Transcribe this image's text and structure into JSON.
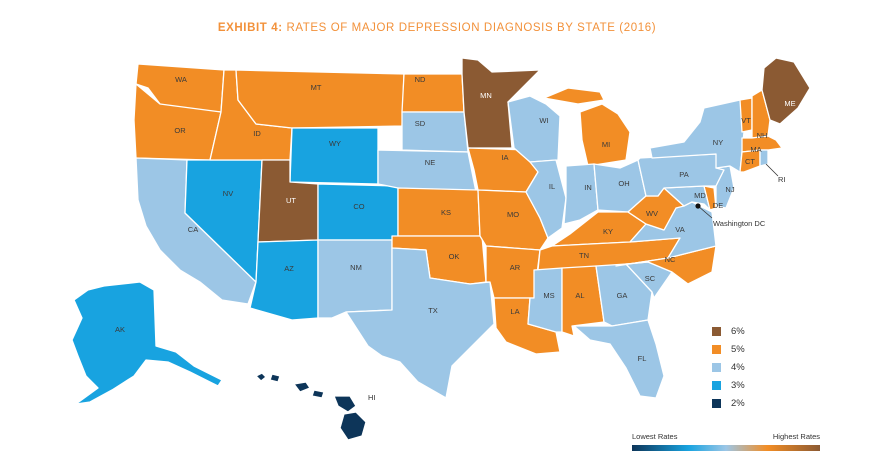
{
  "title": {
    "bold": "EXHIBIT 4:",
    "rest": "RATES OF MAJOR DEPRESSION DIAGNOSIS BY STATE (2016)"
  },
  "colors": {
    "6%": "#8b5a33",
    "5%": "#f28d25",
    "4%": "#9cc6e6",
    "3%": "#18a3e0",
    "2%": "#0d3559"
  },
  "legend": [
    {
      "label": "6%",
      "color": "#8b5a33"
    },
    {
      "label": "5%",
      "color": "#f28d25"
    },
    {
      "label": "4%",
      "color": "#9cc6e6"
    },
    {
      "label": "3%",
      "color": "#18a3e0"
    },
    {
      "label": "2%",
      "color": "#0d3559"
    }
  ],
  "scale": {
    "low": "Lowest Rates",
    "high": "Highest Rates"
  },
  "dc_label": "Washington DC",
  "states": {
    "WA": "5%",
    "OR": "5%",
    "CA": "4%",
    "NV": "3%",
    "ID": "5%",
    "MT": "5%",
    "WY": "3%",
    "UT": "6%",
    "AZ": "3%",
    "CO": "3%",
    "NM": "4%",
    "ND": "5%",
    "SD": "4%",
    "NE": "4%",
    "KS": "5%",
    "OK": "5%",
    "TX": "4%",
    "MN": "6%",
    "IA": "5%",
    "MO": "5%",
    "AR": "5%",
    "LA": "5%",
    "WI": "4%",
    "IL": "4%",
    "MI": "5%",
    "IN": "4%",
    "OH": "4%",
    "KY": "5%",
    "TN": "5%",
    "MS": "4%",
    "AL": "5%",
    "GA": "4%",
    "FL": "4%",
    "SC": "4%",
    "NC": "5%",
    "VA": "4%",
    "WV": "5%",
    "PA": "4%",
    "NY": "4%",
    "VT": "5%",
    "NH": "5%",
    "ME": "6%",
    "MA": "5%",
    "RI": "4%",
    "CT": "5%",
    "NJ": "4%",
    "DE": "5%",
    "MD": "4%",
    "AK": "3%",
    "HI": "2%"
  }
}
